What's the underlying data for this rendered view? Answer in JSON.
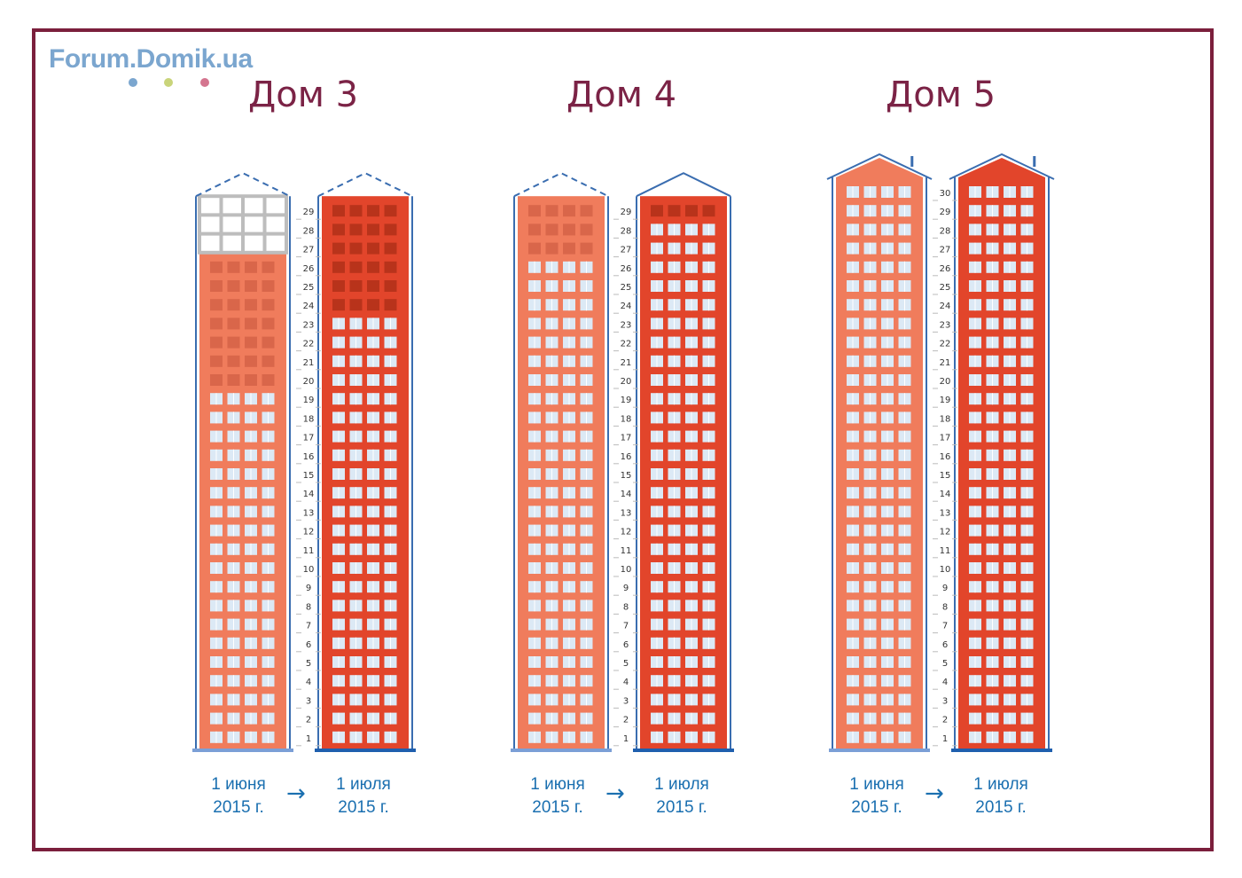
{
  "logo": {
    "text": "Forum.Domik.ua",
    "dots": [
      "#7ba6cf",
      "#c9d47a",
      "#d4758f"
    ]
  },
  "colors": {
    "frame": "#7b1f3c",
    "facade_before": "#f07c5c",
    "facade_after": "#e2452b",
    "window": "#dce9f5",
    "unglazed_before": "#d9664a",
    "unglazed_after": "#b8331b",
    "outline": "#3a6db0",
    "frame_grid": "#bdbdbd",
    "date_text": "#1a6fb0"
  },
  "buildings": [
    {
      "title": "Дом 3",
      "floor_labels_max": 29,
      "before": {
        "date_line1": "1 июня",
        "date_line2": "2015 г.",
        "built_floors": 26,
        "glazed_floors": 19,
        "total_floors": 29,
        "roof": "planned"
      },
      "after": {
        "date_line1": "1 июля",
        "date_line2": "2015 г.",
        "built_floors": 29,
        "glazed_floors": 23,
        "total_floors": 29,
        "roof": "planned"
      }
    },
    {
      "title": "Дом 4",
      "floor_labels_max": 29,
      "before": {
        "date_line1": "1 июня",
        "date_line2": "2015 г.",
        "built_floors": 29,
        "glazed_floors": 26,
        "total_floors": 29,
        "roof": "planned"
      },
      "after": {
        "date_line1": "1 июля",
        "date_line2": "2015 г.",
        "built_floors": 29,
        "glazed_floors": 28,
        "total_floors": 29,
        "roof": "built"
      }
    },
    {
      "title": "Дом 5",
      "floor_labels_max": 30,
      "before": {
        "date_line1": "1 июня",
        "date_line2": "2015 г.",
        "built_floors": 30,
        "glazed_floors": 30,
        "total_floors": 30,
        "roof": "built-chimney"
      },
      "after": {
        "date_line1": "1 июля",
        "date_line2": "2015 г.",
        "built_floors": 30,
        "glazed_floors": 30,
        "total_floors": 30,
        "roof": "built-chimney"
      }
    }
  ],
  "arrow_symbol": "→"
}
